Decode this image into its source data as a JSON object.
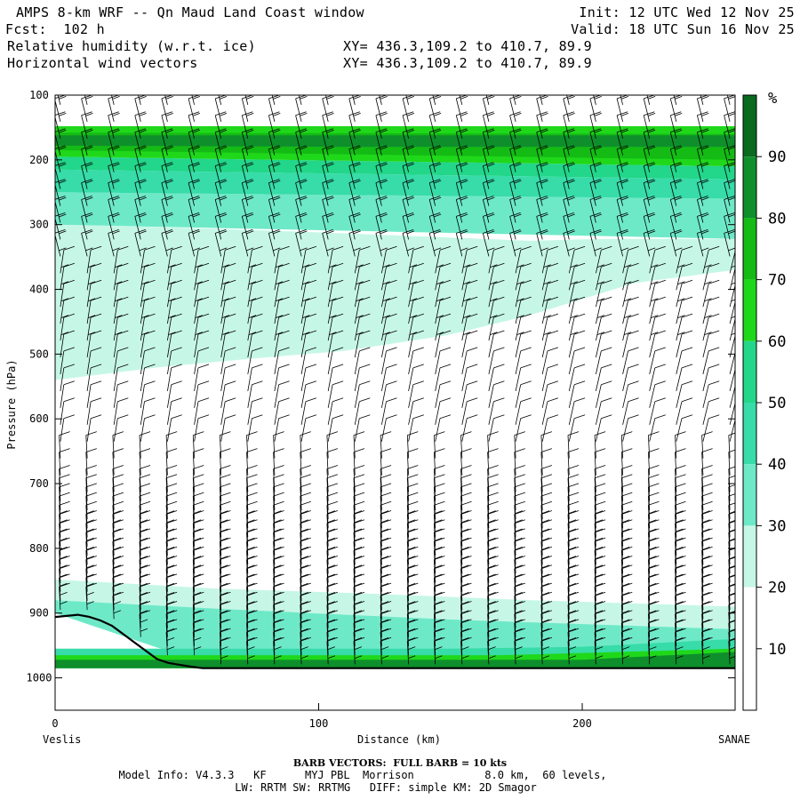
{
  "header": {
    "title": "AMPS 8-km WRF -- Qn Maud Land Coast window",
    "fcst": "Fcst:  102 h",
    "field1": "Relative humidity (w.r.t. ice)",
    "field2": "Horizontal wind vectors",
    "xy1": "XY= 436.3,109.2 to 410.7, 89.9",
    "xy2": "XY= 436.3,109.2 to 410.7, 89.9",
    "init": "Init: 12 UTC Wed 12 Nov 25",
    "valid": "Valid: 18 UTC Sun 16 Nov 25"
  },
  "footer": {
    "barb_note": "BARB VECTORS:  FULL BARB = 10 kts",
    "model_info": "Model Info: V4.3.3   KF      MYJ PBL  Morrison           8.0 km,  60 levels,",
    "model_info2": "LW: RRTM SW: RRTMG   DIFF: simple KM: 2D Smagor"
  },
  "colors": {
    "c30": "#c6f7e6",
    "c40": "#6ee9c8",
    "c50": "#37dca8",
    "c60": "#22d68a",
    "c70": "#1fd81a",
    "c80": "#14bb14",
    "c90": "#0e8f2c",
    "c100": "#0a6a1e"
  },
  "chart_data": {
    "type": "cross-section contour with wind barbs",
    "ylabel": "Pressure (hPa)",
    "xlabel": "Distance (km)",
    "left_label": "Veslis",
    "right_label": "SANAE",
    "xlim": [
      0,
      258
    ],
    "ylim": [
      1050,
      100
    ],
    "x_ticks": [
      0,
      100,
      200
    ],
    "x_tick_labels": [
      "0",
      "100",
      "200"
    ],
    "y_ticks": [
      100,
      200,
      300,
      400,
      500,
      600,
      700,
      800,
      900,
      1000
    ],
    "y_tick_labels": [
      "100",
      "200",
      "300",
      "400",
      "500",
      "600",
      "700",
      "800",
      "900",
      "1000"
    ],
    "colorbar": {
      "unit": "%",
      "levels": [
        10,
        20,
        30,
        40,
        50,
        60,
        70,
        80,
        90
      ],
      "labels": [
        "10",
        "20",
        "30",
        "40",
        "50",
        "60",
        "70",
        "80",
        "90"
      ]
    },
    "rh_bands": [
      {
        "level": 30,
        "top": [
          [
            0,
            300
          ],
          [
            50,
            305
          ],
          [
            100,
            312
          ],
          [
            150,
            320
          ],
          [
            180,
            325
          ],
          [
            210,
            322
          ],
          [
            258,
            322
          ]
        ],
        "bottom_lower": [
          [
            0,
            540
          ],
          [
            40,
            520
          ],
          [
            80,
            505
          ],
          [
            110,
            495
          ],
          [
            150,
            470
          ],
          [
            180,
            440
          ],
          [
            220,
            390
          ],
          [
            258,
            370
          ]
        ]
      },
      {
        "level": 40,
        "top": [
          [
            0,
            250
          ],
          [
            258,
            260
          ]
        ],
        "bottom": [
          [
            0,
            300
          ],
          [
            258,
            322
          ]
        ]
      },
      {
        "level": 50,
        "top": [
          [
            0,
            215
          ],
          [
            258,
            230
          ]
        ],
        "bottom": [
          [
            0,
            250
          ],
          [
            258,
            260
          ]
        ]
      },
      {
        "level": 60,
        "top": [
          [
            0,
            195
          ],
          [
            258,
            210
          ]
        ],
        "bottom": [
          [
            0,
            215
          ],
          [
            258,
            230
          ]
        ]
      },
      {
        "level": 70,
        "top": [
          [
            0,
            148
          ],
          [
            258,
            148
          ]
        ],
        "bottom": [
          [
            0,
            195
          ],
          [
            258,
            210
          ]
        ]
      },
      {
        "level": 80,
        "top": [
          [
            0,
            158
          ],
          [
            258,
            160
          ]
        ],
        "bottom": [
          [
            0,
            185
          ],
          [
            258,
            200
          ]
        ]
      },
      {
        "level": 90,
        "top": [
          [
            0,
            162
          ],
          [
            120,
            162
          ]
        ],
        "bottom": [
          [
            0,
            178
          ],
          [
            120,
            180
          ]
        ]
      }
    ],
    "terrain_hPa": [
      [
        0,
        906
      ],
      [
        10,
        902
      ],
      [
        20,
        915
      ],
      [
        30,
        945
      ],
      [
        40,
        975
      ],
      [
        55,
        985
      ],
      [
        100,
        985
      ],
      [
        258,
        985
      ]
    ]
  }
}
